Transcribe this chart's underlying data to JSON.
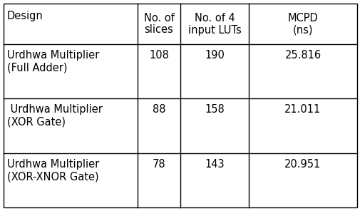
{
  "col_headers_line1": [
    "Design",
    "No. of",
    "No. of 4",
    "MCPD"
  ],
  "col_headers_line2": [
    "",
    "slices",
    "input LUTs",
    "(ns)"
  ],
  "rows": [
    {
      "col0_line1": "Urdhwa Multiplier",
      "col0_line2": "(Full Adder)",
      "col1": "108",
      "col2": "190",
      "col3": "25.816"
    },
    {
      "col0_line1": " Urdhwa Multiplier",
      "col0_line2": "(XOR Gate)",
      "col1": "88",
      "col2": "158",
      "col3": "21.011"
    },
    {
      "col0_line1": "Urdhwa Multiplier",
      "col0_line2": "(XOR-XNOR Gate)",
      "col1": "78",
      "col2": "143",
      "col3": "20.951"
    }
  ],
  "background_color": "#ffffff",
  "line_color": "#000000",
  "text_color": "#000000",
  "font_size": 10.5,
  "fig_width": 5.06,
  "fig_height": 2.96,
  "dpi": 100
}
